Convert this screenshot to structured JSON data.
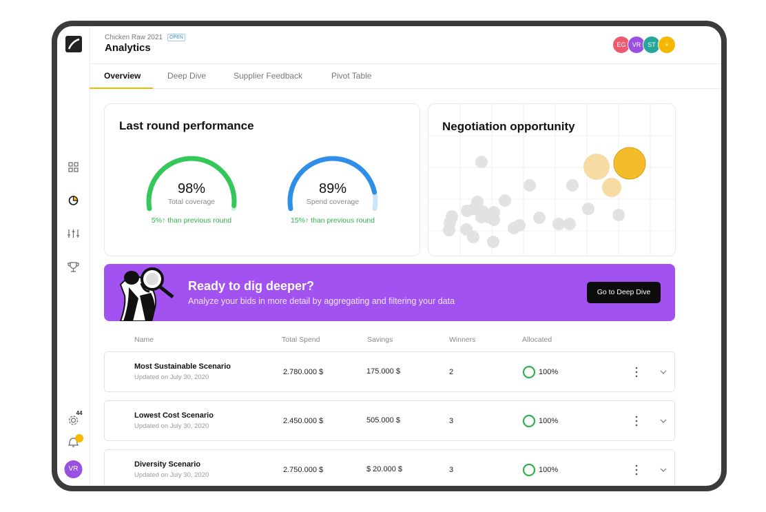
{
  "header": {
    "project": "Chicken Raw 2021",
    "status": "OPEN",
    "title": "Analytics",
    "avatars": [
      {
        "initials": "EG",
        "color": "#ef5a6f"
      },
      {
        "initials": "VR",
        "color": "#9b51e0"
      },
      {
        "initials": "ST",
        "color": "#26a69a"
      },
      {
        "initials": "+",
        "color": "#f5b800"
      }
    ]
  },
  "sidebar": {
    "notifications": "44",
    "user": "VR"
  },
  "tabs": [
    "Overview",
    "Deep Dive",
    "Supplier Feedback",
    "Pivot Table"
  ],
  "performance": {
    "title": "Last round performance",
    "gauges": [
      {
        "value": 98,
        "label": "98%",
        "caption": "Total coverage",
        "change": "5%↑ than previous round",
        "color": "#34c759",
        "track": "#c8efd2"
      },
      {
        "value": 89,
        "label": "89%",
        "caption": "Spend coverage",
        "change": "15%↑ than previous round",
        "color": "#2f8fe8",
        "track": "#cfe4f8"
      }
    ]
  },
  "opportunity": {
    "title": "Negotiation opportunity"
  },
  "banner": {
    "title": "Ready to dig deeper?",
    "text": "Analyze your bids in more detail by aggregating and filtering your data",
    "button": "Go to Deep Dive"
  },
  "table": {
    "columns": [
      "Name",
      "Total Spend",
      "Savings",
      "Winners",
      "Allocated"
    ],
    "rows": [
      {
        "name": "Most Sustainable Scenario",
        "updated": "Updated on July 30, 2020",
        "spend": "2.780.000 $",
        "savings": "175.000 $",
        "winners": "2",
        "allocated": "100%"
      },
      {
        "name": "Lowest Cost Scenario",
        "updated": "Updated on July 30, 2020",
        "spend": "2.450.000 $",
        "savings": "505.000 $",
        "winners": "3",
        "allocated": "100%"
      },
      {
        "name": "Diversity Scenario",
        "updated": "Updated on July 30, 2020",
        "spend": "2.750.000 $",
        "savings": "$ 20.000 $",
        "winners": "3",
        "allocated": "100%"
      }
    ]
  }
}
